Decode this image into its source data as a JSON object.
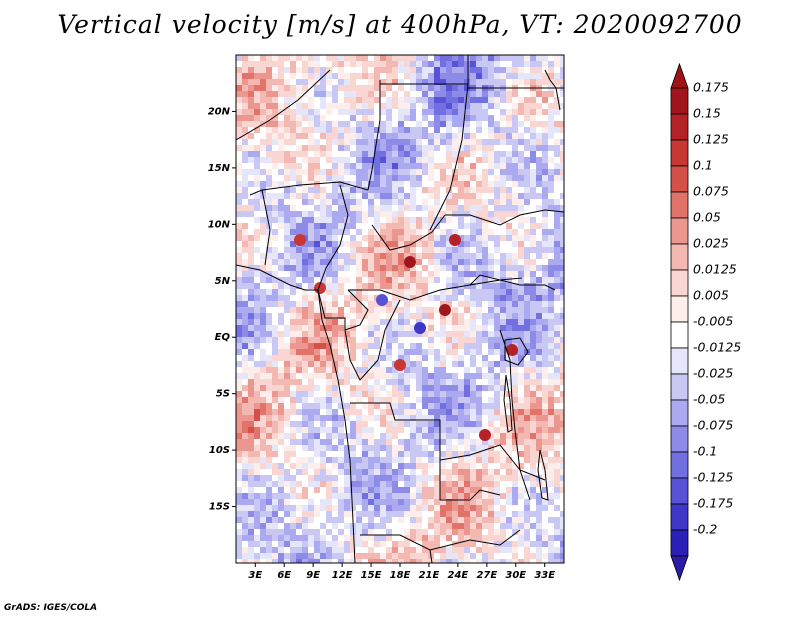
{
  "title": "Vertical velocity [m/s] at 400hPa, VT: 2020092700",
  "credit": "GrADS: IGES/COLA",
  "map": {
    "lon_range": [
      1,
      35
    ],
    "lat_range": [
      -20,
      25
    ],
    "x_ticks": [
      "3E",
      "6E",
      "9E",
      "12E",
      "15E",
      "18E",
      "21E",
      "24E",
      "27E",
      "30E",
      "33E"
    ],
    "x_tick_values": [
      3,
      6,
      9,
      12,
      15,
      18,
      21,
      24,
      27,
      30,
      33
    ],
    "y_ticks": [
      "20N",
      "15N",
      "10N",
      "5N",
      "EQ",
      "5S",
      "10S",
      "15S"
    ],
    "y_tick_values": [
      20,
      15,
      10,
      5,
      0,
      -5,
      -10,
      -15
    ]
  },
  "colorbar": {
    "levels": [
      {
        "label": "0.175",
        "color": "#a3151c"
      },
      {
        "label": "0.15",
        "color": "#b42127"
      },
      {
        "label": "0.125",
        "color": "#c93734"
      },
      {
        "label": "0.1",
        "color": "#d6504a"
      },
      {
        "label": "0.075",
        "color": "#e2736a"
      },
      {
        "label": "0.05",
        "color": "#ec9690"
      },
      {
        "label": "0.025",
        "color": "#f4b8b2"
      },
      {
        "label": "0.0125",
        "color": "#f9d6d2"
      },
      {
        "label": "0.005",
        "color": "#fdeeec"
      },
      {
        "label": "-0.005",
        "color": "#ffffff"
      },
      {
        "label": "-0.0125",
        "color": "#e6e6fb"
      },
      {
        "label": "-0.025",
        "color": "#c9c8f5"
      },
      {
        "label": "-0.05",
        "color": "#aba9ef"
      },
      {
        "label": "-0.075",
        "color": "#8e8be8"
      },
      {
        "label": "-0.1",
        "color": "#726fe0"
      },
      {
        "label": "-0.125",
        "color": "#5853d6"
      },
      {
        "label": "-0.175",
        "color": "#3f37c8"
      },
      {
        "label": "-0.2",
        "color": "#2a1fb6"
      }
    ],
    "top_color": "#a01217",
    "bottom_color": "#2e1aa8"
  }
}
